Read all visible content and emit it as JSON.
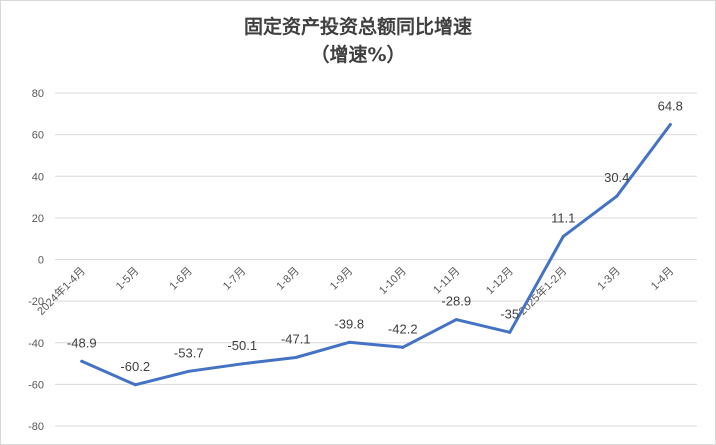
{
  "chart_data": {
    "type": "line",
    "title": "固定资产投资总额同比增速",
    "subtitle": "（增速%）",
    "xlabel": "",
    "ylabel": "",
    "categories": [
      "2024年1-4月",
      "1-5月",
      "1-6月",
      "1-7月",
      "1-8月",
      "1-9月",
      "1-10月",
      "1-11月",
      "1-12月",
      "2025年1-2月",
      "1-3月",
      "1-4月"
    ],
    "series": [
      {
        "values": [
          -48.9,
          -60.2,
          -53.7,
          -50.1,
          -47.1,
          -39.8,
          -42.2,
          -28.9,
          -35,
          11.1,
          30.4,
          64.8
        ]
      }
    ],
    "data_labels": [
      "-48.9",
      "-60.2",
      "-53.7",
      "-50.1",
      "-47.1",
      "-39.8",
      "-42.2",
      "-28.9",
      "-35",
      "11.1",
      "30.4",
      "64.8"
    ],
    "ylim": [
      -80,
      80
    ],
    "yticks": [
      80,
      60,
      40,
      20,
      0,
      -20,
      -40,
      -60,
      -80
    ],
    "ytick_labels": [
      "80",
      "60",
      "40",
      "20",
      "0",
      "-20",
      "-40",
      "-60",
      "-80"
    ],
    "grid": true,
    "legend": "none",
    "line_color": "#4472c4"
  }
}
